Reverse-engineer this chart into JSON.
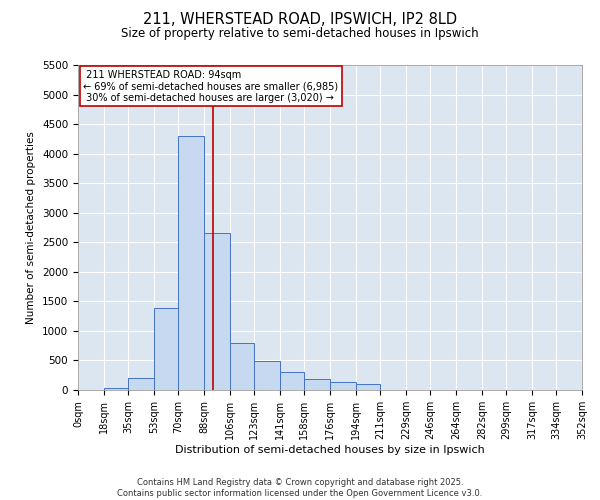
{
  "title_line1": "211, WHERSTEAD ROAD, IPSWICH, IP2 8LD",
  "title_line2": "Size of property relative to semi-detached houses in Ipswich",
  "xlabel": "Distribution of semi-detached houses by size in Ipswich",
  "ylabel": "Number of semi-detached properties",
  "property_label": "211 WHERSTEAD ROAD: 94sqm",
  "smaller_pct": 69,
  "smaller_count": 6985,
  "larger_pct": 30,
  "larger_count": 3020,
  "bin_labels": [
    "0sqm",
    "18sqm",
    "35sqm",
    "53sqm",
    "70sqm",
    "88sqm",
    "106sqm",
    "123sqm",
    "141sqm",
    "158sqm",
    "176sqm",
    "194sqm",
    "211sqm",
    "229sqm",
    "246sqm",
    "264sqm",
    "282sqm",
    "299sqm",
    "317sqm",
    "334sqm",
    "352sqm"
  ],
  "bin_edges": [
    0,
    18,
    35,
    53,
    70,
    88,
    106,
    123,
    141,
    158,
    176,
    194,
    211,
    229,
    246,
    264,
    282,
    299,
    317,
    334,
    352
  ],
  "bar_heights": [
    0,
    30,
    200,
    1380,
    4300,
    2650,
    800,
    490,
    300,
    190,
    130,
    110,
    0,
    0,
    0,
    0,
    0,
    0,
    0,
    0
  ],
  "bar_color": "#c6d9f0",
  "bar_edge_color": "#4472c4",
  "background_color": "#dce6f1",
  "vline_color": "#c00000",
  "vline_x": 94,
  "ylim": [
    0,
    5500
  ],
  "yticks": [
    0,
    500,
    1000,
    1500,
    2000,
    2500,
    3000,
    3500,
    4000,
    4500,
    5000,
    5500
  ],
  "footer_line1": "Contains HM Land Registry data © Crown copyright and database right 2025.",
  "footer_line2": "Contains public sector information licensed under the Open Government Licence v3.0."
}
